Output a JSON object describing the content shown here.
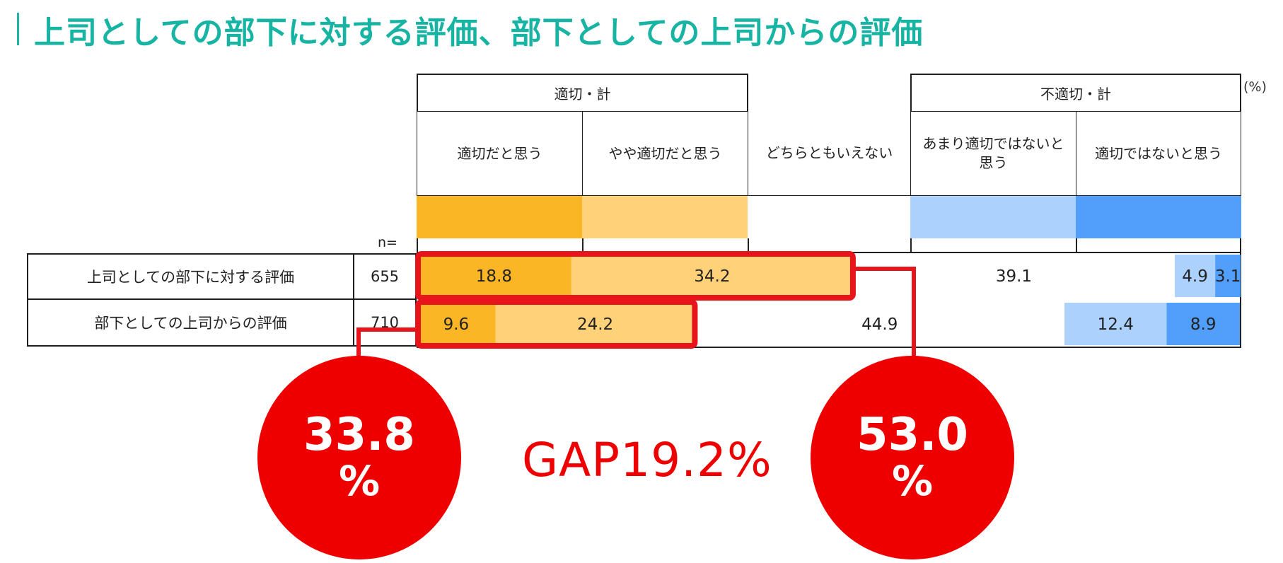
{
  "title": "上司としての部下に対する評価、部下としての上司からの評価",
  "unit": "(%)",
  "n_label": "n=",
  "group_headers": {
    "appropriate": "適切・計",
    "inappropriate": "不適切・計"
  },
  "chart_data": {
    "type": "bar",
    "orientation": "horizontal-stacked",
    "xlim": [
      0,
      100
    ],
    "categories": [
      "上司としての部下に対する評価",
      "部下としての上司からの評価"
    ],
    "n": [
      "655",
      "710"
    ],
    "series": [
      {
        "name": "適切だと思う",
        "color": "#fbb626",
        "values": [
          18.8,
          9.6
        ]
      },
      {
        "name": "やや適切だと思う",
        "color": "#ffd27a",
        "values": [
          34.2,
          24.2
        ]
      },
      {
        "name": "どちらともいえない",
        "color": "#ffffff",
        "values": [
          39.1,
          44.9
        ]
      },
      {
        "name": "あまり適切ではないと思う",
        "color": "#acd1fc",
        "values": [
          4.9,
          12.4
        ]
      },
      {
        "name": "適切ではないと思う",
        "color": "#519ffa",
        "values": [
          3.1,
          8.9
        ]
      }
    ],
    "value_labels": [
      [
        "18.8",
        "34.2",
        "39.1",
        "4.9",
        "3.1"
      ],
      [
        "9.6",
        "24.2",
        "44.9",
        "12.4",
        "8.9"
      ]
    ],
    "highlight_color": "#e8141c"
  },
  "callouts": {
    "left": {
      "value": "33.8",
      "unit": "%"
    },
    "right": {
      "value": "53.0",
      "unit": "%"
    },
    "gap": "GAP19.2%"
  }
}
